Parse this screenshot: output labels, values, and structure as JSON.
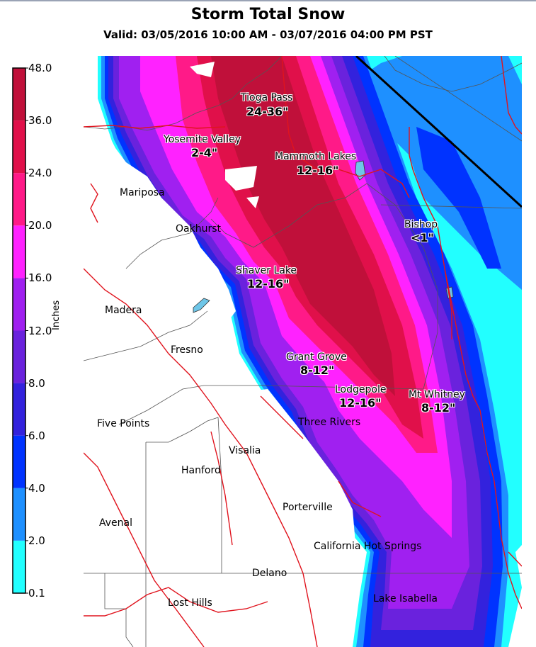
{
  "title": "Storm Total Snow",
  "subtitle": "Valid: 03/05/2016 10:00 AM - 03/07/2016 04:00 PM PST",
  "legend": {
    "title": "Inches",
    "bins": [
      {
        "label": "0.1",
        "color": "#22ffff"
      },
      {
        "label": "2.0",
        "color": "#1e90ff"
      },
      {
        "label": "4.0",
        "color": "#0033ff"
      },
      {
        "label": "6.0",
        "color": "#3322dd"
      },
      {
        "label": "8.0",
        "color": "#6a22dd"
      },
      {
        "label": "12.0",
        "color": "#a020f0"
      },
      {
        "label": "16.0",
        "color": "#ff22ff"
      },
      {
        "label": "20.0",
        "color": "#ff1a88"
      },
      {
        "label": "24.0",
        "color": "#e0104a"
      },
      {
        "label": "36.0",
        "color": "#c0103a"
      },
      {
        "label": "48.0",
        "color": "#a01020"
      }
    ]
  },
  "forecast_points": [
    {
      "name": "Tioga Pass",
      "amount": "24-36\""
    },
    {
      "name": "Yosemite Valley",
      "amount": "2-4\""
    },
    {
      "name": "Mammoth Lakes",
      "amount": "12-16\""
    },
    {
      "name": "Bishop",
      "amount": "<1\""
    },
    {
      "name": "Shaver Lake",
      "amount": "12-16\""
    },
    {
      "name": "Grant Grove",
      "amount": "8-12\""
    },
    {
      "name": "Lodgepole",
      "amount": "12-16\""
    },
    {
      "name": "Mt Whitney",
      "amount": "8-12\""
    }
  ],
  "cities": [
    "Mariposa",
    "Oakhurst",
    "Madera",
    "Fresno",
    "Five Points",
    "Visalia",
    "Hanford",
    "Three Rivers",
    "Porterville",
    "Avenal",
    "California Hot Springs",
    "Delano",
    "Lost Hills",
    "Lake Isabella"
  ],
  "colors": {
    "highway": "#e0141e",
    "county_line": "#555555",
    "state_line": "#000000",
    "lake": "#6ec6e8"
  }
}
